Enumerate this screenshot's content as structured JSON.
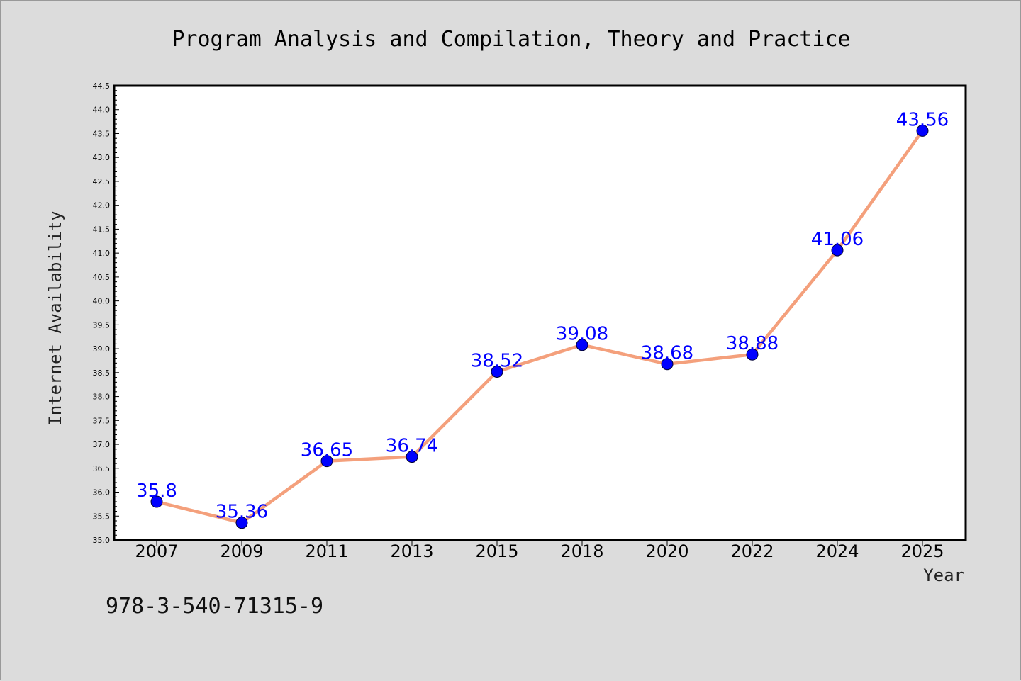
{
  "chart_data": {
    "type": "line",
    "title": "Program Analysis and Compilation, Theory and Practice",
    "xlabel": "Year",
    "ylabel": "Internet Availability",
    "categories": [
      "2007",
      "2009",
      "2011",
      "2013",
      "2015",
      "2018",
      "2020",
      "2022",
      "2024",
      "2025"
    ],
    "series": [
      {
        "values": [
          35.8,
          35.36,
          36.65,
          36.74,
          38.52,
          39.08,
          38.68,
          38.88,
          41.06,
          43.56
        ],
        "labels": [
          "35.8",
          "35.36",
          "36.65",
          "36.74",
          "38.52",
          "39.08",
          "38.68",
          "38.88",
          "41.06",
          "43.56"
        ],
        "line_color": "#f4a07c",
        "marker_color": "#0000ff"
      }
    ],
    "ylim": [
      35.0,
      44.5
    ],
    "yticks": [
      "35.0",
      "35.5",
      "36.0",
      "36.5",
      "37.0",
      "37.5",
      "38.0",
      "38.5",
      "39.0",
      "39.5",
      "40.0",
      "40.5",
      "41.0",
      "41.5",
      "42.0",
      "42.5",
      "43.0",
      "43.5",
      "44.0",
      "44.5"
    ],
    "grid": false,
    "legend": "none"
  },
  "footnote": "978-3-540-71315-9"
}
